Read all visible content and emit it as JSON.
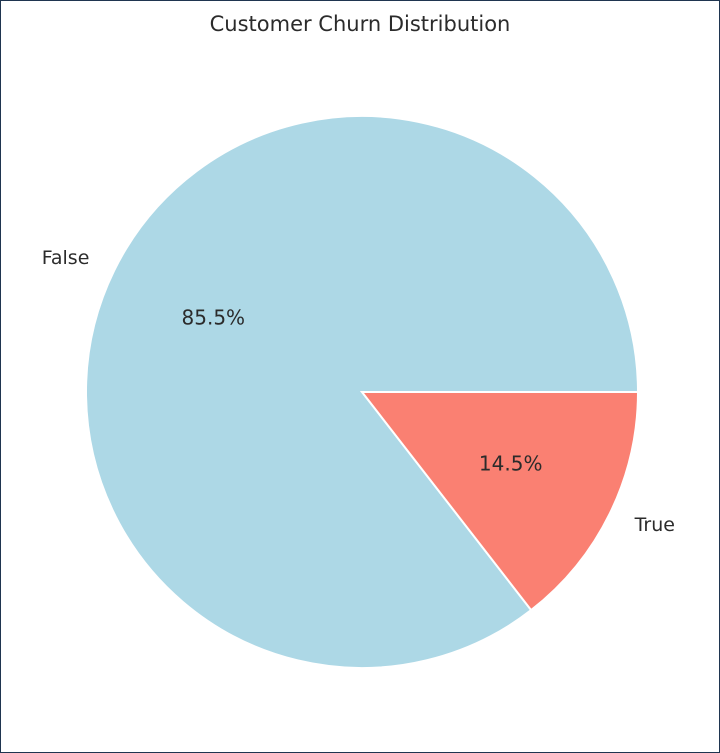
{
  "chart_data": {
    "type": "pie",
    "title": "Customer Churn Distribution",
    "categories": [
      "False",
      "True"
    ],
    "values": [
      85.5,
      14.5
    ],
    "value_labels": [
      "85.5%",
      "14.5%"
    ],
    "colors": [
      "#add8e6",
      "#fa8072"
    ],
    "start_angle_deg": 0,
    "direction": "clockwise",
    "legend": "none"
  }
}
